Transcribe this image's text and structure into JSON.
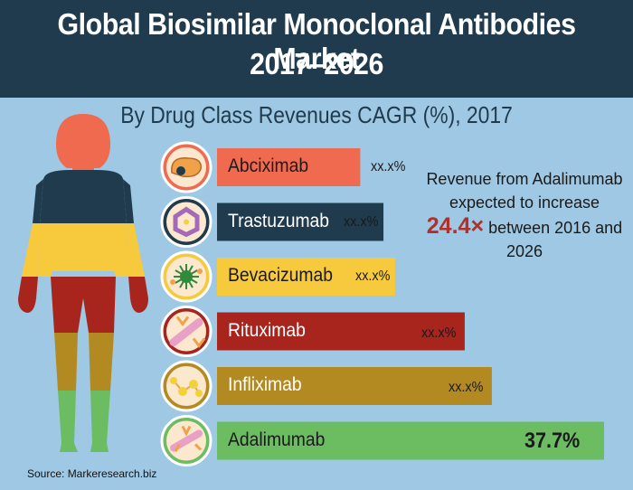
{
  "header": {
    "title_line1": "Global Biosimilar Monoclonal Antibodies Market",
    "title_line2": "2017–2026",
    "subtitle": "By Drug Class Revenues CAGR (%), 2017"
  },
  "note": {
    "pre": "Revenue from Adalimumab expected to increase",
    "highlight": "24.4×",
    "post": "between 2016 and 2026"
  },
  "source": "Source: Markeresearch.biz",
  "chart_data": {
    "type": "bar",
    "orientation": "horizontal",
    "title": "By Drug Class Revenues CAGR (%), 2017",
    "categories": [
      "Abciximab",
      "Trastuzumab",
      "Bevacizumab",
      "Rituximab",
      "Infliximab",
      "Adalimumab"
    ],
    "value_labels": [
      "xx.x%",
      "xx.x%",
      "xx.x%",
      "xx.x%",
      "xx.x%",
      "37.7%"
    ],
    "values": [
      null,
      null,
      null,
      null,
      null,
      37.7
    ],
    "relative_lengths": [
      0.37,
      0.43,
      0.46,
      0.64,
      0.71,
      1.0
    ],
    "colors": [
      "#f06a4f",
      "#1f3b4d",
      "#f7c93d",
      "#a8251e",
      "#b38a22",
      "#6cbc62"
    ],
    "label_colors": [
      "#1a1a1a",
      "#ffffff",
      "#1a1a1a",
      "#ffffff",
      "#ffffff",
      "#1a1a1a"
    ],
    "icons": [
      "abciximab-molecule-icon",
      "trastuzumab-molecule-icon",
      "bevacizumab-molecule-icon",
      "rituximab-molecule-icon",
      "infliximab-molecule-icon",
      "adalimumab-molecule-icon"
    ]
  }
}
